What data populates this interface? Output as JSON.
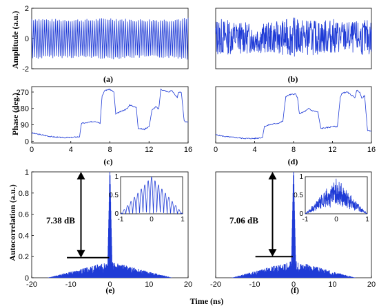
{
  "colors": {
    "signal": "#1f3bd6",
    "axis": "#000000",
    "background": "#ffffff"
  },
  "labels": {
    "amplitude_ylabel": "Amplitude (a.u.)",
    "phase_ylabel": "Phase (deg.)",
    "autocorr_ylabel": "Autocorrelation (a.u.)",
    "time_xlabel": "Time (ns)"
  },
  "panels": {
    "a": "(a)",
    "b": "(b)",
    "c": "(c)",
    "d": "(d)",
    "e": "(e)",
    "f": "(f)"
  },
  "annotations": {
    "e_db": "7.38 dB",
    "f_db": "7.06 dB"
  },
  "chart_data": [
    {
      "id": "a",
      "type": "line",
      "ylabel": "Amplitude (a.u.)",
      "xlim": [
        0,
        16
      ],
      "ylim": [
        -2,
        2
      ],
      "yticks": [
        -2,
        0,
        2
      ],
      "xticks": [],
      "x": [
        0,
        2,
        4,
        6,
        8,
        10,
        12,
        14,
        16
      ],
      "envelope_max": [
        1.4,
        1.3,
        1.3,
        1.3,
        1.4,
        1.3,
        1.3,
        1.3,
        1.4
      ],
      "envelope_min": [
        -1.4,
        -1.3,
        -1.3,
        -1.3,
        -1.4,
        -1.3,
        -1.3,
        -1.3,
        -1.4
      ]
    },
    {
      "id": "b",
      "type": "line",
      "xlim": [
        0,
        16
      ],
      "ylim": [
        -2,
        2
      ],
      "yticks": [],
      "xticks": [],
      "x": [
        0,
        2,
        4,
        6,
        8,
        10,
        12,
        14,
        16
      ],
      "envelope_max": [
        1.4,
        1.2,
        1.0,
        1.1,
        1.4,
        1.2,
        1.3,
        1.1,
        1.3
      ],
      "envelope_min": [
        -1.2,
        -1.0,
        -1.0,
        -1.0,
        -1.2,
        -1.1,
        -1.0,
        -1.0,
        -1.2
      ]
    },
    {
      "id": "c",
      "type": "line",
      "ylabel": "Phase (deg.)",
      "xlim": [
        0,
        16
      ],
      "ylim": [
        -10,
        300
      ],
      "yticks": [
        0,
        90,
        180,
        270
      ],
      "xticks": [
        0,
        4,
        8,
        12,
        16
      ],
      "x": [
        0,
        0.5,
        1,
        2,
        3,
        4,
        4.9,
        5.1,
        5.5,
        6.5,
        7,
        7.2,
        7.5,
        8,
        8.4,
        8.6,
        9,
        9.8,
        10,
        10.7,
        10.9,
        11.5,
        11.8,
        12,
        12.3,
        12.7,
        13,
        13.2,
        14,
        14.3,
        14.6,
        14.9,
        15,
        15.3,
        15.6,
        16
      ],
      "y": [
        45,
        40,
        35,
        25,
        20,
        20,
        25,
        100,
        100,
        110,
        100,
        250,
        280,
        285,
        270,
        150,
        160,
        180,
        200,
        185,
        70,
        65,
        75,
        80,
        170,
        190,
        175,
        285,
        270,
        280,
        260,
        240,
        265,
        270,
        110,
        105
      ]
    },
    {
      "id": "d",
      "type": "line",
      "xlim": [
        0,
        16
      ],
      "ylim": [
        -10,
        300
      ],
      "yticks": [],
      "xticks": [
        0,
        4,
        8,
        12,
        16
      ],
      "x": [
        0,
        0.5,
        1,
        2,
        3,
        4,
        4.8,
        5,
        5.5,
        6.5,
        6.9,
        7.2,
        7.6,
        8.2,
        8.4,
        8.6,
        9.2,
        9.6,
        9.8,
        10.5,
        10.8,
        11.5,
        12,
        12.5,
        12.8,
        13,
        13.5,
        14.3,
        14.5,
        14.8,
        15,
        15.3,
        15.6,
        16
      ],
      "y": [
        35,
        30,
        25,
        20,
        15,
        15,
        20,
        80,
        90,
        100,
        110,
        245,
        255,
        260,
        240,
        150,
        165,
        180,
        170,
        160,
        70,
        75,
        80,
        80,
        240,
        265,
        270,
        240,
        280,
        270,
        235,
        250,
        60,
        55
      ]
    },
    {
      "id": "e",
      "type": "line",
      "ylabel": "Autocorrelation (a.u.)",
      "xlim": [
        -20,
        20
      ],
      "ylim": [
        0,
        1
      ],
      "yticks": [
        0,
        0.2,
        0.4,
        0.6,
        0.8,
        1
      ],
      "xticks": [
        -20,
        -10,
        0,
        10,
        20
      ],
      "peak": 1.0,
      "sidelobe_level": 0.19,
      "annotation": "7.38 dB",
      "inset": {
        "xlim": [
          -1,
          1
        ],
        "ylim": [
          0,
          1
        ],
        "xticks": [
          -1,
          0,
          1
        ],
        "yticks": [
          0,
          0.5,
          1
        ]
      }
    },
    {
      "id": "f",
      "type": "line",
      "xlim": [
        -20,
        20
      ],
      "ylim": [
        0,
        1
      ],
      "yticks": [],
      "xticks": [
        -20,
        -10,
        0,
        10,
        20
      ],
      "peak": 1.0,
      "sidelobe_level": 0.2,
      "annotation": "7.06 dB",
      "inset": {
        "xlim": [
          -1,
          1
        ],
        "ylim": [
          0,
          1
        ],
        "xticks": [
          -1,
          0,
          1
        ],
        "yticks": [
          0,
          0.5,
          1
        ]
      }
    }
  ]
}
